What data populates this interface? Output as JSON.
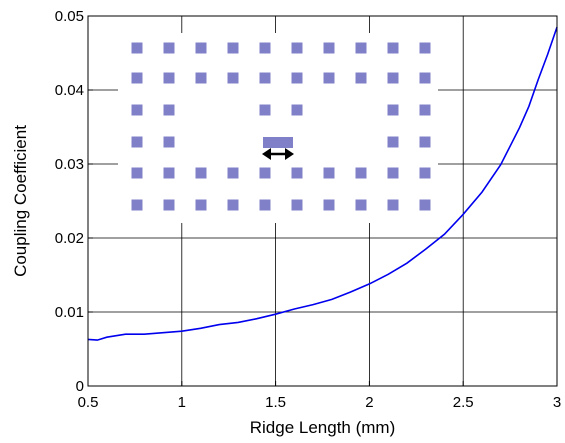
{
  "chart_data": {
    "type": "line",
    "title": "",
    "xlabel": "Ridge Length (mm)",
    "ylabel": "Coupling Coefficient",
    "xlim": [
      0.5,
      3
    ],
    "ylim": [
      0,
      0.05
    ],
    "xticks": [
      0.5,
      1,
      1.5,
      2,
      2.5,
      3
    ],
    "yticks": [
      0,
      0.01,
      0.02,
      0.03,
      0.04,
      0.05
    ],
    "xtick_labels": [
      "0.5",
      "1",
      "1.5",
      "2",
      "2.5",
      "3"
    ],
    "ytick_labels": [
      "0",
      "0.01",
      "0.02",
      "0.03",
      "0.04",
      "0.05"
    ],
    "grid": true,
    "series": [
      {
        "color": "#0000ee",
        "x": [
          0.5,
          0.55,
          0.6,
          0.7,
          0.8,
          0.9,
          1.0,
          1.1,
          1.2,
          1.3,
          1.4,
          1.5,
          1.6,
          1.7,
          1.8,
          1.9,
          2.0,
          2.1,
          2.2,
          2.3,
          2.4,
          2.5,
          2.6,
          2.7,
          2.8,
          2.85,
          2.9,
          2.95,
          3.0
        ],
        "y": [
          0.0063,
          0.0062,
          0.0066,
          0.007,
          0.007,
          0.0072,
          0.0074,
          0.0078,
          0.0083,
          0.0086,
          0.0091,
          0.0097,
          0.0104,
          0.011,
          0.0117,
          0.0127,
          0.0138,
          0.0151,
          0.0166,
          0.0185,
          0.0205,
          0.0232,
          0.0262,
          0.0299,
          0.0349,
          0.0378,
          0.0414,
          0.0448,
          0.0485
        ]
      }
    ]
  },
  "inset": {
    "description_icon": "double-arrow-icon",
    "square_color": "#8080c8",
    "arrow_color": "#000000"
  }
}
